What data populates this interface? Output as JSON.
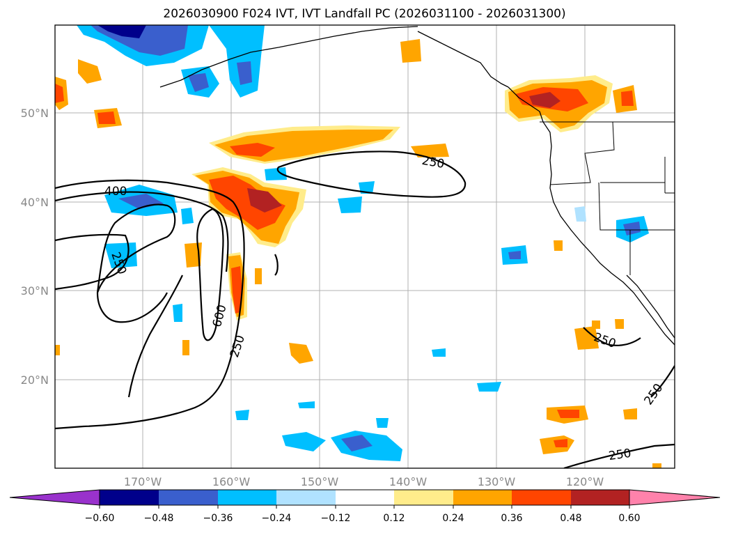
{
  "title": "2026030900 F024 IVT, IVT Landfall PC (2026031100 - 2026031300)",
  "lon_labels": [
    "170°W",
    "160°W",
    "150°W",
    "140°W",
    "130°W",
    "120°W"
  ],
  "lat_labels": [
    "50°N",
    "40°N",
    "30°N",
    "20°N"
  ],
  "colorbar": {
    "colors": [
      "#9932cc",
      "#00008b",
      "#3a5fcd",
      "#00bfff",
      "#b0e2ff",
      "#ffffff",
      "#ffec8b",
      "#ffa500",
      "#ff4500",
      "#b22222",
      "#ff82ab"
    ],
    "tick_labels": [
      "−0.60",
      "−0.48",
      "−0.36",
      "−0.24",
      "−0.12",
      "0.12",
      "0.24",
      "0.36",
      "0.48",
      "0.60"
    ]
  },
  "contour_labels": [
    "400",
    "250",
    "250",
    "600",
    "250",
    "250",
    "250",
    "250",
    "250"
  ]
}
